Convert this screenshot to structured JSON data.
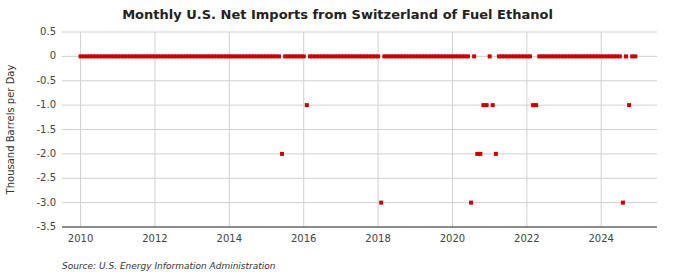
{
  "chart_data": {
    "type": "scatter",
    "title": "Monthly U.S. Net Imports from Switzerland of Fuel Ethanol",
    "y_label": "Thousand Barrels per Day",
    "annotations": [
      "Source: U.S. Energy Information Administration"
    ],
    "color": "#cc0000",
    "marker": "square",
    "grid": true,
    "xlim": [
      2009.5,
      2025.5
    ],
    "xticks": [
      2010,
      2012,
      2014,
      2016,
      2018,
      2020,
      2022,
      2024
    ],
    "ylim": [
      -3.5,
      0.5
    ],
    "yticks": [
      0.5,
      0,
      -0.5,
      {
        "value": -1.0,
        "label": "-1.0"
      },
      {
        "value": -1.5,
        "label": "-1.5"
      },
      {
        "value": -2.0,
        "label": "-2.0"
      },
      {
        "value": -2.5,
        "label": "-2.5"
      },
      {
        "value": -3.0,
        "label": "-3.0"
      },
      {
        "value": -3.5,
        "label": "-3.5"
      }
    ],
    "x": [
      2010.0,
      2010.083,
      2010.167,
      2010.25,
      2010.333,
      2010.417,
      2010.5,
      2010.583,
      2010.667,
      2010.75,
      2010.833,
      2010.917,
      2011.0,
      2011.083,
      2011.167,
      2011.25,
      2011.333,
      2011.417,
      2011.5,
      2011.583,
      2011.667,
      2011.75,
      2011.833,
      2011.917,
      2012.0,
      2012.083,
      2012.167,
      2012.25,
      2012.333,
      2012.417,
      2012.5,
      2012.583,
      2012.667,
      2012.75,
      2012.833,
      2012.917,
      2013.0,
      2013.083,
      2013.167,
      2013.25,
      2013.333,
      2013.417,
      2013.5,
      2013.583,
      2013.667,
      2013.75,
      2013.833,
      2013.917,
      2014.0,
      2014.083,
      2014.167,
      2014.25,
      2014.333,
      2014.417,
      2014.5,
      2014.583,
      2014.667,
      2014.75,
      2014.833,
      2014.917,
      2015.0,
      2015.083,
      2015.167,
      2015.25,
      2015.333,
      2015.417,
      2015.5,
      2015.583,
      2015.667,
      2015.75,
      2015.833,
      2015.917,
      2016.0,
      2016.083,
      2016.167,
      2016.25,
      2016.333,
      2016.417,
      2016.5,
      2016.583,
      2016.667,
      2016.75,
      2016.833,
      2016.917,
      2017.0,
      2017.083,
      2017.167,
      2017.25,
      2017.333,
      2017.417,
      2017.5,
      2017.583,
      2017.667,
      2017.75,
      2017.833,
      2017.917,
      2018.0,
      2018.083,
      2018.167,
      2018.25,
      2018.333,
      2018.417,
      2018.5,
      2018.583,
      2018.667,
      2018.75,
      2018.833,
      2018.917,
      2019.0,
      2019.083,
      2019.167,
      2019.25,
      2019.333,
      2019.417,
      2019.5,
      2019.583,
      2019.667,
      2019.75,
      2019.833,
      2019.917,
      2020.0,
      2020.083,
      2020.167,
      2020.25,
      2020.333,
      2020.417,
      2020.5,
      2020.583,
      2020.667,
      2020.75,
      2020.833,
      2020.917,
      2021.0,
      2021.083,
      2021.167,
      2021.25,
      2021.333,
      2021.417,
      2021.5,
      2021.583,
      2021.667,
      2021.75,
      2021.833,
      2021.917,
      2022.0,
      2022.083,
      2022.167,
      2022.25,
      2022.333,
      2022.417,
      2022.5,
      2022.583,
      2022.667,
      2022.75,
      2022.833,
      2022.917,
      2023.0,
      2023.083,
      2023.167,
      2023.25,
      2023.333,
      2023.417,
      2023.5,
      2023.583,
      2023.667,
      2023.75,
      2023.833,
      2023.917,
      2024.0,
      2024.083,
      2024.167,
      2024.25,
      2024.333,
      2024.417,
      2024.5,
      2024.583,
      2024.667,
      2024.75,
      2024.833,
      2024.917
    ],
    "values": [
      0,
      0,
      0,
      0,
      0,
      0,
      0,
      0,
      0,
      0,
      0,
      0,
      0,
      0,
      0,
      0,
      0,
      0,
      0,
      0,
      0,
      0,
      0,
      0,
      0,
      0,
      0,
      0,
      0,
      0,
      0,
      0,
      0,
      0,
      0,
      0,
      0,
      0,
      0,
      0,
      0,
      0,
      0,
      0,
      0,
      0,
      0,
      0,
      0,
      0,
      0,
      0,
      0,
      0,
      0,
      0,
      0,
      0,
      0,
      0,
      0,
      0,
      0,
      0,
      0,
      -2.0,
      0,
      0,
      0,
      0,
      0,
      0,
      0,
      -1.0,
      0,
      0,
      0,
      0,
      0,
      0,
      0,
      0,
      0,
      0,
      0,
      0,
      0,
      0,
      0,
      0,
      0,
      0,
      0,
      0,
      0,
      0,
      0,
      -3.0,
      0,
      0,
      0,
      0,
      0,
      0,
      0,
      0,
      0,
      0,
      0,
      0,
      0,
      0,
      0,
      0,
      0,
      0,
      0,
      0,
      0,
      0,
      0,
      0,
      0,
      0,
      0,
      0,
      -3.0,
      0,
      -2.0,
      -2.0,
      -1.0,
      -1.0,
      0,
      -1.0,
      -2.0,
      0,
      0,
      0,
      0,
      0,
      0,
      0,
      0,
      0,
      0,
      0,
      -1.0,
      -1.0,
      0,
      0,
      0,
      0,
      0,
      0,
      0,
      0,
      0,
      0,
      0,
      0,
      0,
      0,
      0,
      0,
      0,
      0,
      0,
      0,
      0,
      0,
      0,
      0,
      0,
      0,
      0,
      -3.0,
      0,
      -1.0,
      0,
      0
    ]
  }
}
